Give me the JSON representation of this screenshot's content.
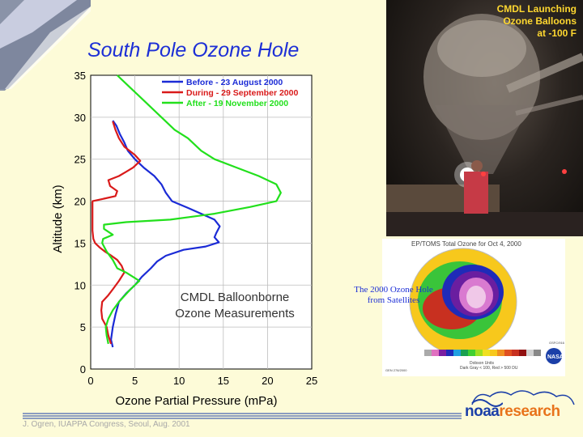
{
  "slide_title": "South Pole Ozone Hole",
  "plot_label": "CMDL Balloonborne\nOzone Measurements",
  "photo_caption": "CMDL Launching\nOzone Balloons\nat  -100 F",
  "sat_caption": "The 2000 Ozone Hole from Satellites",
  "toms_title": "EP/TOMS Total Ozone for Oct  4, 2000",
  "toms_footer_units": "Dobson Units",
  "toms_footer_note": "Dark Gray < 100, Red > 500 DU",
  "toms_footer_id": "GSFC/916",
  "toms_footer_code": "GEN 278/2000",
  "toms_colorbar_labels": [
    "100",
    "125",
    "150",
    "175",
    "200",
    "225",
    "250",
    "275",
    "300",
    "325",
    "350",
    "375",
    "400",
    "425",
    "450",
    "475",
    "500"
  ],
  "footer_credit": "J. Ogren, IUAPPA Congress, Seoul, Aug. 2001",
  "logo": {
    "noaa": "noaa",
    "research": "research"
  },
  "colors": {
    "before": "#1b2bd6",
    "during": "#d91a1a",
    "after": "#22e01c",
    "title": "#1d2fd6"
  },
  "chart_data": {
    "type": "line",
    "xlabel": "Ozone Partial Pressure (mPa)",
    "ylabel": "Altitude (km)",
    "xlim": [
      0,
      25
    ],
    "ylim": [
      0,
      35
    ],
    "xticks": [
      0,
      5,
      10,
      15,
      20,
      25
    ],
    "yticks": [
      0,
      5,
      10,
      15,
      20,
      25,
      30,
      35
    ],
    "grid": true,
    "legend": "top-right",
    "series": [
      {
        "name": "Before - 23 August 2000",
        "color": "#1b2bd6",
        "points": [
          [
            2.5,
            2.6
          ],
          [
            2.3,
            3.5
          ],
          [
            2.5,
            5
          ],
          [
            2.8,
            6.5
          ],
          [
            3.2,
            8
          ],
          [
            4.0,
            9
          ],
          [
            5.0,
            10
          ],
          [
            5.8,
            11
          ],
          [
            6.8,
            12
          ],
          [
            7.5,
            12.8
          ],
          [
            8.5,
            13.5
          ],
          [
            10.5,
            14.2
          ],
          [
            13.0,
            14.6
          ],
          [
            14.5,
            15.1
          ],
          [
            14.0,
            15.7
          ],
          [
            14.2,
            16.2
          ],
          [
            14.6,
            17.0
          ],
          [
            14.0,
            17.8
          ],
          [
            12.5,
            18.5
          ],
          [
            11.0,
            19.2
          ],
          [
            9.2,
            20.0
          ],
          [
            8.5,
            21.0
          ],
          [
            8.0,
            22.0
          ],
          [
            7.2,
            23.0
          ],
          [
            6.0,
            24.0
          ],
          [
            5.0,
            25.0
          ],
          [
            4.2,
            26.0
          ],
          [
            3.8,
            27.0
          ],
          [
            3.3,
            28.0
          ],
          [
            2.9,
            29.0
          ],
          [
            2.5,
            29.6
          ]
        ]
      },
      {
        "name": "During - 29 September 2000",
        "color": "#d91a1a",
        "points": [
          [
            2.3,
            3.0
          ],
          [
            2.0,
            4.0
          ],
          [
            1.8,
            5.0
          ],
          [
            1.3,
            6.0
          ],
          [
            1.2,
            7.0
          ],
          [
            1.3,
            8.0
          ],
          [
            2.0,
            8.8
          ],
          [
            2.5,
            9.5
          ],
          [
            3.2,
            10.5
          ],
          [
            3.8,
            11.5
          ],
          [
            3.5,
            12.3
          ],
          [
            3.0,
            13.0
          ],
          [
            2.2,
            13.6
          ],
          [
            1.6,
            14.0
          ],
          [
            1.0,
            14.5
          ],
          [
            0.5,
            15.0
          ],
          [
            0.3,
            15.5
          ],
          [
            0.2,
            16.5
          ],
          [
            0.2,
            18.0
          ],
          [
            0.2,
            20.0
          ],
          [
            1.5,
            20.3
          ],
          [
            2.8,
            20.6
          ],
          [
            3.0,
            21.2
          ],
          [
            2.2,
            21.8
          ],
          [
            2.0,
            22.5
          ],
          [
            3.2,
            23.0
          ],
          [
            4.0,
            23.5
          ],
          [
            4.8,
            24.0
          ],
          [
            5.6,
            24.8
          ],
          [
            5.0,
            25.5
          ],
          [
            3.8,
            26.5
          ],
          [
            3.2,
            27.5
          ],
          [
            2.8,
            28.5
          ],
          [
            2.5,
            29.5
          ]
        ]
      },
      {
        "name": "After - 19 November 2000",
        "color": "#22e01c",
        "points": [
          [
            2.0,
            3.0
          ],
          [
            1.8,
            4.0
          ],
          [
            1.7,
            5.0
          ],
          [
            2.0,
            6.0
          ],
          [
            2.5,
            7.0
          ],
          [
            3.2,
            8.0
          ],
          [
            4.5,
            9.5
          ],
          [
            5.5,
            10.5
          ],
          [
            4.0,
            11.5
          ],
          [
            3.0,
            12.0
          ],
          [
            2.5,
            13.0
          ],
          [
            1.8,
            14.0
          ],
          [
            1.3,
            15.0
          ],
          [
            1.4,
            15.5
          ],
          [
            2.5,
            16.0
          ],
          [
            1.5,
            16.7
          ],
          [
            1.5,
            17.2
          ],
          [
            4.0,
            17.5
          ],
          [
            9.0,
            17.8
          ],
          [
            14.0,
            18.5
          ],
          [
            18.0,
            19.3
          ],
          [
            21.0,
            20.0
          ],
          [
            21.5,
            21.0
          ],
          [
            21.0,
            22.0
          ],
          [
            19.0,
            23.0
          ],
          [
            16.5,
            24.0
          ],
          [
            14.0,
            25.0
          ],
          [
            12.5,
            26.0
          ],
          [
            11.0,
            27.5
          ],
          [
            9.5,
            28.5
          ],
          [
            8.0,
            30.0
          ],
          [
            6.5,
            31.5
          ],
          [
            5.5,
            32.5
          ],
          [
            4.5,
            33.5
          ],
          [
            3.5,
            34.5
          ],
          [
            3.0,
            35.0
          ]
        ]
      }
    ]
  }
}
